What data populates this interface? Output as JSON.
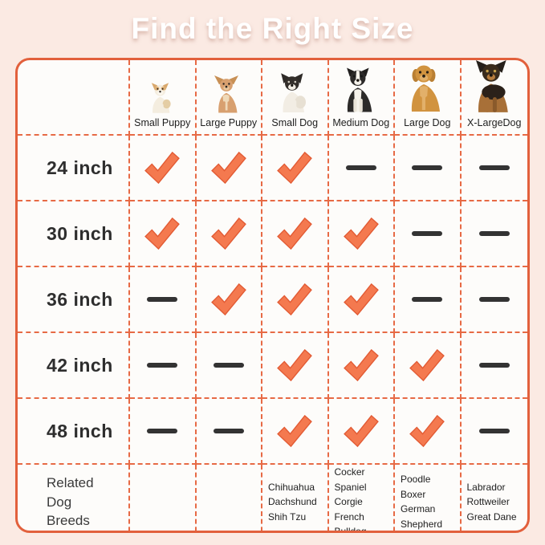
{
  "title": "Find the Right Size",
  "colors": {
    "background_pink": "#FBEAE3",
    "table_background": "#FDFCFA",
    "accent_orange": "#E2603C",
    "check_orange": "#F4794F",
    "dash_gray": "#333333"
  },
  "table": {
    "columns": [
      {
        "label": "Small Puppy",
        "icon": "corgi-puppy-icon"
      },
      {
        "label": "Large Puppy",
        "icon": "chihuahua-icon"
      },
      {
        "label": "Small Dog",
        "icon": "french-bulldog-icon"
      },
      {
        "label": "Medium Dog",
        "icon": "border-collie-icon"
      },
      {
        "label": "Large Dog",
        "icon": "golden-retriever-icon"
      },
      {
        "label": "X-LargeDog",
        "icon": "german-shepherd-icon"
      }
    ],
    "rows": [
      {
        "label": "24 inch",
        "marks": [
          "check",
          "check",
          "check",
          "dash",
          "dash",
          "dash"
        ]
      },
      {
        "label": "30 inch",
        "marks": [
          "check",
          "check",
          "check",
          "check",
          "dash",
          "dash"
        ]
      },
      {
        "label": "36 inch",
        "marks": [
          "dash",
          "check",
          "check",
          "check",
          "dash",
          "dash"
        ]
      },
      {
        "label": "42 inch",
        "marks": [
          "dash",
          "dash",
          "check",
          "check",
          "check",
          "dash"
        ]
      },
      {
        "label": "48 inch",
        "marks": [
          "dash",
          "dash",
          "check",
          "check",
          "check",
          "dash"
        ]
      }
    ],
    "breeds_row": {
      "label": "Related Dog Breeds",
      "cells": [
        [],
        [],
        [
          "Chihuahua",
          "Dachshund",
          "Shih Tzu"
        ],
        [
          "Cocker Spaniel",
          "Corgie",
          "French Bulldog"
        ],
        [
          "Poodle",
          "Boxer",
          "German Shepherd"
        ],
        [
          "Labrador",
          "Rottweiler",
          "Great Dane"
        ]
      ]
    }
  }
}
